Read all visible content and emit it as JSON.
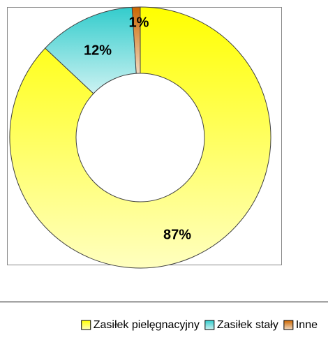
{
  "chart_data": {
    "type": "pie",
    "donut": true,
    "categories": [
      "Zasiłek pielęgnacyjny",
      "Zasiłek stały",
      "Inne"
    ],
    "values": [
      87,
      12,
      1
    ],
    "value_labels": [
      "87%",
      "12%",
      "1%"
    ],
    "colors": [
      "#ffff00",
      "#33cccc",
      "#cc6600"
    ],
    "legend": "bottom"
  }
}
